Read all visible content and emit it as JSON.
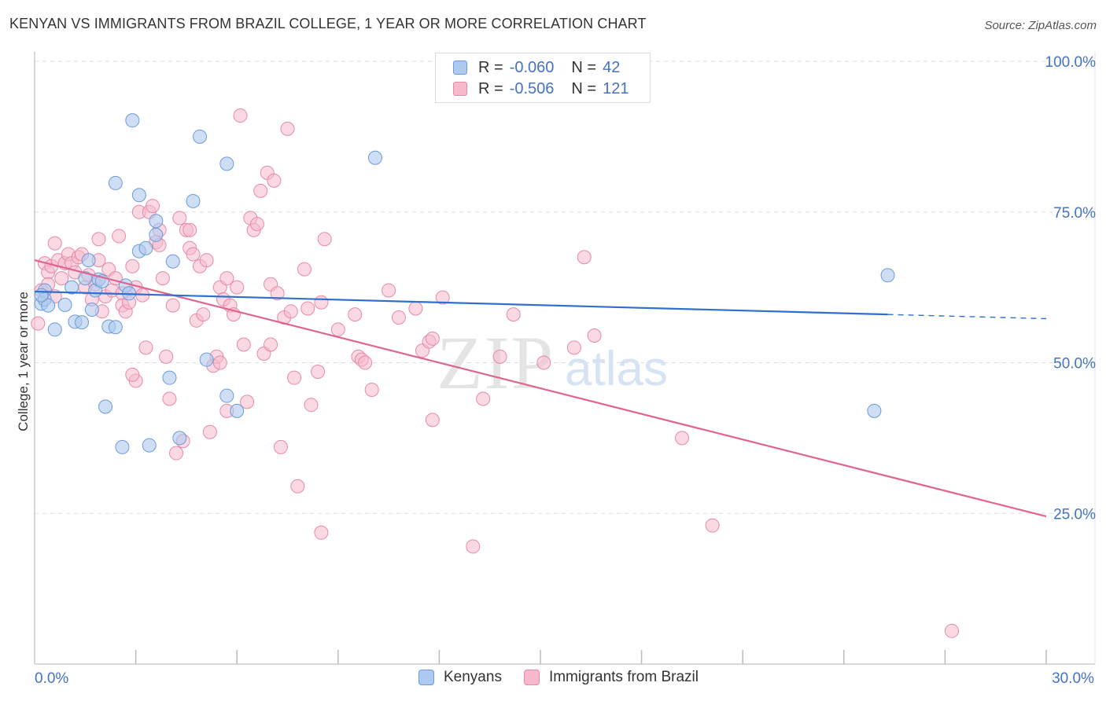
{
  "header": {
    "title": "KENYAN VS IMMIGRANTS FROM BRAZIL COLLEGE, 1 YEAR OR MORE CORRELATION CHART",
    "source": "Source: ZipAtlas.com"
  },
  "watermark": {
    "zip": "ZIP",
    "atlas": "atlas"
  },
  "legend": {
    "rows": [
      {
        "r_label": "R =",
        "r_value": "-0.060",
        "n_label": "N =",
        "n_value": "42"
      },
      {
        "r_label": "R =",
        "r_value": "-0.506",
        "n_label": "N =",
        "n_value": "121"
      }
    ]
  },
  "bottom_legend": {
    "kenyans": "Kenyans",
    "brazil": "Immigrants from Brazil"
  },
  "colors": {
    "kenyans_fill": "#aec9ef",
    "kenyans_stroke": "#6d9bd8",
    "kenyans_line": "#2f6fce",
    "brazil_fill": "#f6b9cc",
    "brazil_stroke": "#e889a8",
    "brazil_line": "#e0648f",
    "tick_text": "#4472c4",
    "grid": "#dddddd"
  },
  "chart_data": {
    "type": "scatter",
    "title": "KENYAN VS IMMIGRANTS FROM BRAZIL COLLEGE, 1 YEAR OR MORE CORRELATION CHART",
    "xlabel": "",
    "ylabel": "College, 1 year or more",
    "xlim": [
      0,
      30
    ],
    "ylim": [
      0,
      100
    ],
    "x_ticks": [
      0,
      30
    ],
    "x_tick_labels": [
      "0.0%",
      "30.0%"
    ],
    "y_ticks": [
      25,
      50,
      75,
      100
    ],
    "y_tick_labels": [
      "25.0%",
      "50.0%",
      "75.0%",
      "100.0%"
    ],
    "grid": true,
    "legend_position": "top-center",
    "series": [
      {
        "name": "Kenyans",
        "r": -0.06,
        "n": 42,
        "trend": {
          "x_start": 0,
          "y_start": 61.8,
          "x_end": 25.3,
          "y_end": 58.0,
          "dashed_to_x": 30,
          "dashed_to_y": 57.3
        },
        "points": [
          [
            0.2,
            59.8
          ],
          [
            0.3,
            62.0
          ],
          [
            0.3,
            60.5
          ],
          [
            0.4,
            59.5
          ],
          [
            0.6,
            55.5
          ],
          [
            0.9,
            59.6
          ],
          [
            1.1,
            62.5
          ],
          [
            1.2,
            56.8
          ],
          [
            1.4,
            56.7
          ],
          [
            1.5,
            64.0
          ],
          [
            1.6,
            67.0
          ],
          [
            1.7,
            58.8
          ],
          [
            1.8,
            62.0
          ],
          [
            1.9,
            63.8
          ],
          [
            2.0,
            63.5
          ],
          [
            2.1,
            42.7
          ],
          [
            2.2,
            56.0
          ],
          [
            2.4,
            55.9
          ],
          [
            2.4,
            79.8
          ],
          [
            2.6,
            36.0
          ],
          [
            2.7,
            62.8
          ],
          [
            2.8,
            61.5
          ],
          [
            2.9,
            90.2
          ],
          [
            3.1,
            68.5
          ],
          [
            3.1,
            77.8
          ],
          [
            3.3,
            69.0
          ],
          [
            3.4,
            36.3
          ],
          [
            3.6,
            71.2
          ],
          [
            3.6,
            73.5
          ],
          [
            4.0,
            47.5
          ],
          [
            4.1,
            66.8
          ],
          [
            4.3,
            37.5
          ],
          [
            4.7,
            76.8
          ],
          [
            4.9,
            87.5
          ],
          [
            5.1,
            50.5
          ],
          [
            5.7,
            83.0
          ],
          [
            5.7,
            44.5
          ],
          [
            6.0,
            42.0
          ],
          [
            10.1,
            84.0
          ],
          [
            24.9,
            42.0
          ],
          [
            25.3,
            64.5
          ],
          [
            0.2,
            61.2
          ]
        ]
      },
      {
        "name": "Immigrants from Brazil",
        "r": -0.506,
        "n": 121,
        "trend": {
          "x_start": 0,
          "y_start": 67.0,
          "x_end": 30,
          "y_end": 24.5
        },
        "points": [
          [
            0.1,
            56.5
          ],
          [
            0.2,
            62.0
          ],
          [
            0.3,
            66.5
          ],
          [
            0.4,
            65.0
          ],
          [
            0.5,
            66.0
          ],
          [
            0.6,
            69.8
          ],
          [
            0.7,
            67.0
          ],
          [
            0.8,
            64.0
          ],
          [
            0.9,
            66.5
          ],
          [
            1.0,
            68.0
          ],
          [
            1.1,
            66.5
          ],
          [
            1.2,
            65.0
          ],
          [
            1.3,
            67.5
          ],
          [
            1.4,
            68.0
          ],
          [
            1.5,
            62.5
          ],
          [
            1.6,
            64.5
          ],
          [
            1.7,
            60.5
          ],
          [
            1.8,
            63.0
          ],
          [
            1.9,
            70.5
          ],
          [
            2.0,
            58.5
          ],
          [
            2.1,
            61.0
          ],
          [
            2.2,
            65.5
          ],
          [
            2.3,
            62.0
          ],
          [
            2.4,
            64.0
          ],
          [
            2.5,
            71.0
          ],
          [
            2.6,
            61.5
          ],
          [
            2.6,
            59.5
          ],
          [
            2.7,
            58.5
          ],
          [
            2.8,
            60.0
          ],
          [
            2.9,
            66.0
          ],
          [
            3.0,
            62.5
          ],
          [
            3.0,
            47.0
          ],
          [
            3.1,
            75.0
          ],
          [
            3.2,
            61.2
          ],
          [
            3.3,
            52.5
          ],
          [
            3.4,
            75.0
          ],
          [
            3.5,
            76.0
          ],
          [
            3.6,
            70.0
          ],
          [
            3.7,
            72.0
          ],
          [
            3.8,
            64.0
          ],
          [
            3.9,
            51.0
          ],
          [
            4.0,
            44.0
          ],
          [
            4.1,
            59.5
          ],
          [
            4.2,
            35.0
          ],
          [
            4.3,
            74.0
          ],
          [
            4.4,
            37.0
          ],
          [
            4.5,
            72.0
          ],
          [
            4.6,
            69.0
          ],
          [
            4.7,
            68.0
          ],
          [
            4.8,
            57.0
          ],
          [
            4.9,
            66.0
          ],
          [
            5.0,
            58.0
          ],
          [
            5.1,
            67.0
          ],
          [
            5.2,
            38.5
          ],
          [
            5.3,
            49.5
          ],
          [
            5.4,
            51.0
          ],
          [
            5.5,
            62.5
          ],
          [
            5.6,
            60.5
          ],
          [
            5.7,
            64.0
          ],
          [
            5.7,
            42.0
          ],
          [
            5.8,
            59.5
          ],
          [
            5.9,
            58.0
          ],
          [
            6.0,
            62.5
          ],
          [
            6.1,
            91.0
          ],
          [
            6.2,
            53.0
          ],
          [
            6.3,
            43.5
          ],
          [
            6.4,
            74.0
          ],
          [
            6.5,
            72.0
          ],
          [
            6.6,
            73.0
          ],
          [
            6.7,
            78.5
          ],
          [
            6.8,
            51.5
          ],
          [
            6.9,
            81.5
          ],
          [
            7.0,
            63.0
          ],
          [
            7.1,
            80.2
          ],
          [
            7.2,
            61.5
          ],
          [
            7.3,
            36.0
          ],
          [
            7.4,
            57.5
          ],
          [
            7.5,
            88.8
          ],
          [
            7.6,
            58.5
          ],
          [
            7.7,
            47.5
          ],
          [
            7.8,
            29.5
          ],
          [
            8.0,
            65.5
          ],
          [
            8.1,
            59.0
          ],
          [
            8.2,
            43.0
          ],
          [
            8.4,
            48.5
          ],
          [
            8.5,
            21.8
          ],
          [
            8.6,
            70.5
          ],
          [
            9.0,
            55.5
          ],
          [
            9.6,
            51.0
          ],
          [
            9.7,
            50.5
          ],
          [
            9.8,
            50.0
          ],
          [
            10.0,
            45.5
          ],
          [
            10.5,
            62.0
          ],
          [
            10.8,
            57.5
          ],
          [
            11.3,
            59.0
          ],
          [
            11.5,
            52.0
          ],
          [
            11.7,
            53.5
          ],
          [
            11.8,
            54.0
          ],
          [
            11.8,
            40.5
          ],
          [
            12.1,
            60.8
          ],
          [
            13.0,
            19.5
          ],
          [
            13.3,
            44.0
          ],
          [
            13.8,
            51.0
          ],
          [
            14.2,
            58.0
          ],
          [
            15.1,
            50.0
          ],
          [
            16.0,
            52.5
          ],
          [
            16.3,
            67.5
          ],
          [
            16.6,
            54.5
          ],
          [
            19.2,
            37.5
          ],
          [
            20.1,
            23.0
          ],
          [
            27.2,
            5.5
          ],
          [
            0.4,
            63.0
          ],
          [
            1.9,
            67.0
          ],
          [
            3.7,
            69.5
          ],
          [
            4.6,
            72.0
          ],
          [
            2.9,
            48.0
          ],
          [
            5.5,
            50.0
          ],
          [
            7.0,
            53.0
          ],
          [
            8.5,
            60.0
          ],
          [
            9.5,
            58.0
          ],
          [
            0.6,
            61.0
          ]
        ]
      }
    ]
  }
}
